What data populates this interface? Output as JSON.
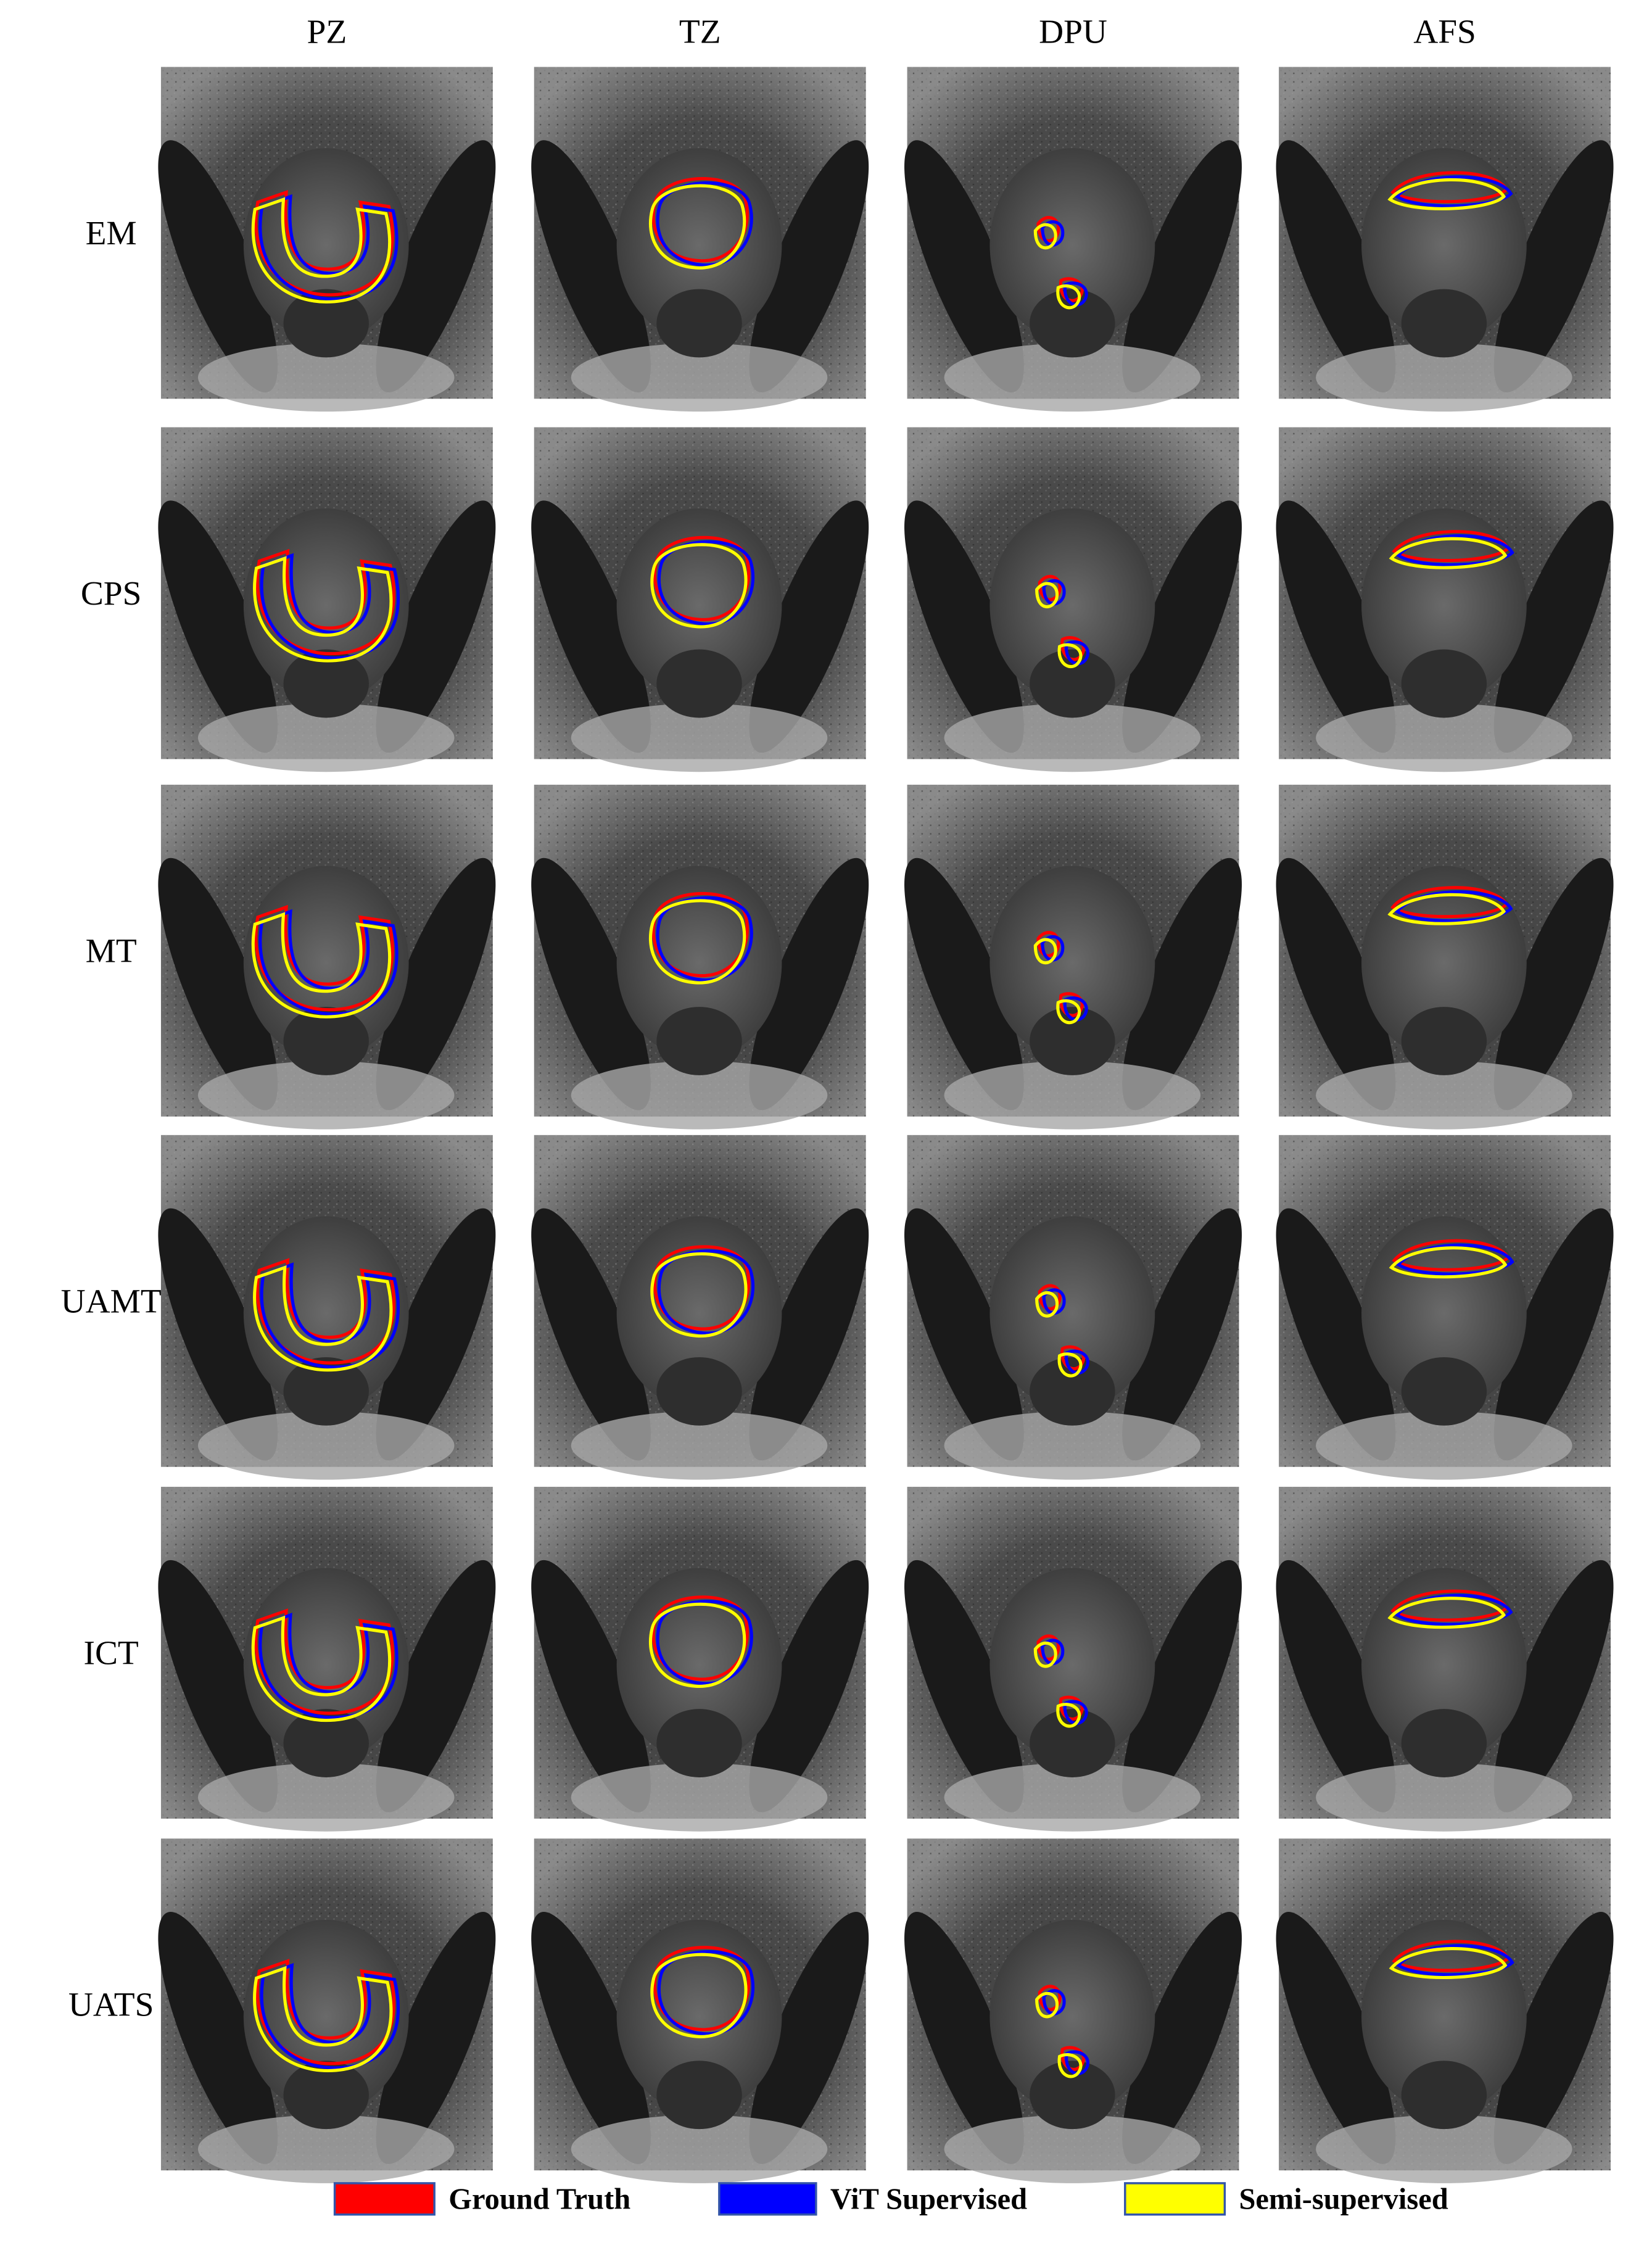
{
  "columns": [
    "PZ",
    "TZ",
    "DPU",
    "AFS"
  ],
  "rows": [
    "EM",
    "CPS",
    "MT",
    "UAMT",
    "ICT",
    "UATS"
  ],
  "legend": [
    {
      "label": "Ground Truth",
      "color": "#ff0000"
    },
    {
      "label": "ViT Supervised",
      "color": "#0000ff"
    },
    {
      "label": "Semi-supervised",
      "color": "#ffff00"
    }
  ]
}
